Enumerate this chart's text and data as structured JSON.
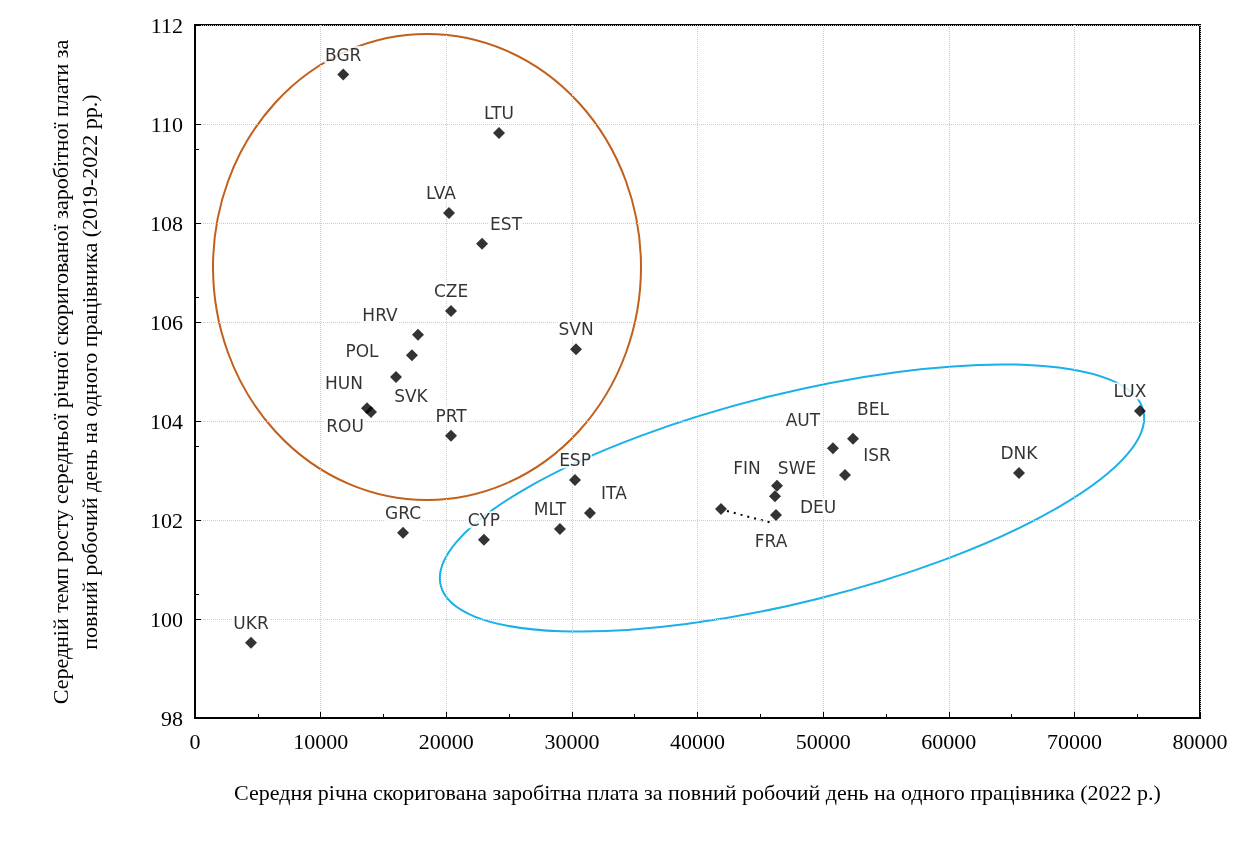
{
  "chart_data": {
    "type": "scatter",
    "xlabel": "Середня річна скоригована заробітна плата за повний робочий день на одного працівника (2022 р.)",
    "ylabel": "Середній темп росту середньої річної скоригованої заробітної плати за повний робочий день на одного працівника (2019-2022 рр.)",
    "xlim": [
      0,
      80000
    ],
    "xticks": [
      0,
      10000,
      20000,
      30000,
      40000,
      50000,
      60000,
      70000,
      80000
    ],
    "ylim": [
      98,
      112
    ],
    "yticks": [
      98,
      100,
      102,
      104,
      106,
      108,
      110,
      112
    ],
    "grid": true,
    "marker": "diamond",
    "series": [
      {
        "color": "#000000",
        "x": [
          11800,
          24200,
          20220,
          22850,
          20380,
          17750,
          17270,
          16000,
          13690,
          14010,
          30330,
          20380,
          16560,
          23000,
          30250,
          29050,
          31440,
          4460,
          41870,
          46330,
          46170,
          46250,
          50780,
          52380,
          51740,
          65590,
          75220
        ],
        "values": [
          111.0,
          109.82,
          108.2,
          107.58,
          106.22,
          105.74,
          105.33,
          104.89,
          104.26,
          104.18,
          105.45,
          103.7,
          101.74,
          101.6,
          102.81,
          101.82,
          102.14,
          99.52,
          102.22,
          102.69,
          102.48,
          102.1,
          103.45,
          103.64,
          102.91,
          102.95,
          104.2
        ],
        "value_labels": [
          "BGR",
          "LTU",
          "LVA",
          "EST",
          "CZE",
          "HRV",
          "POL",
          "HUN",
          "SVK",
          "ROU",
          "SVN",
          "PRT",
          "GRC",
          "CYP",
          "ESP",
          "MLT",
          "ITA",
          "UKR",
          "FRA",
          "FIN",
          "SWE",
          "DEU",
          "AUT",
          "BEL",
          "ISR",
          "DNK",
          "LUX"
        ]
      }
    ]
  }
}
